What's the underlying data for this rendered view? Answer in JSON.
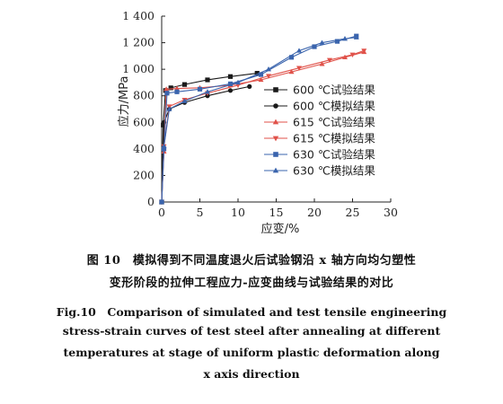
{
  "chart_data": {
    "type": "line",
    "xlabel": "应变/%",
    "ylabel": "应力/MPa",
    "xlim": [
      0,
      30
    ],
    "ylim": [
      0,
      1400
    ],
    "xticks": [
      "0",
      "5",
      "10",
      "15",
      "20",
      "25",
      "30"
    ],
    "yticks": [
      "0",
      "200",
      "400",
      "600",
      "800",
      "1 000",
      "1 200",
      "1 400"
    ],
    "grid": false,
    "legend_position": "right",
    "series": [
      {
        "name": "600 ℃试验结果",
        "color": "#1a1a1a",
        "marker": "square",
        "x": [
          0,
          0.2,
          0.5,
          1.2,
          3,
          6,
          9,
          12.5
        ],
        "y": [
          0,
          580,
          840,
          860,
          885,
          920,
          945,
          970
        ]
      },
      {
        "name": "600 ℃模拟结果",
        "color": "#1a1a1a",
        "marker": "circle",
        "x": [
          0,
          0.3,
          1,
          3,
          6,
          9,
          11.5
        ],
        "y": [
          0,
          600,
          700,
          750,
          800,
          840,
          870
        ]
      },
      {
        "name": "615 ℃试验结果",
        "color": "#e0524a",
        "marker": "triangle-up",
        "x": [
          0,
          0.3,
          0.6,
          2,
          5,
          9,
          13,
          17,
          21,
          24,
          26.5
        ],
        "y": [
          0,
          380,
          850,
          855,
          860,
          880,
          920,
          980,
          1040,
          1090,
          1130
        ]
      },
      {
        "name": "615 ℃模拟结果",
        "color": "#e0524a",
        "marker": "triangle-down",
        "x": [
          0,
          0.3,
          1,
          3,
          6,
          10,
          14,
          18,
          22,
          25,
          26.5
        ],
        "y": [
          0,
          420,
          720,
          770,
          820,
          880,
          950,
          1010,
          1070,
          1110,
          1140
        ]
      },
      {
        "name": "630 ℃试验结果",
        "color": "#3a64ad",
        "marker": "square",
        "x": [
          0,
          0.3,
          0.7,
          2,
          5,
          9,
          13,
          17,
          20,
          23,
          25.5
        ],
        "y": [
          0,
          400,
          820,
          830,
          850,
          890,
          960,
          1090,
          1170,
          1210,
          1250
        ]
      },
      {
        "name": "630 ℃模拟结果",
        "color": "#3a64ad",
        "marker": "triangle-up",
        "x": [
          0,
          0.3,
          1,
          3,
          6,
          10,
          14,
          18,
          21,
          24,
          25.5
        ],
        "y": [
          0,
          420,
          700,
          760,
          830,
          900,
          1000,
          1140,
          1200,
          1230,
          1240
        ]
      }
    ]
  },
  "caption": {
    "zh_line1": "图 10　模拟得到不同温度退火后试验钢沿 x 轴方向均匀塑性",
    "zh_line2": "变形阶段的拉伸工程应力-应变曲线与试验结果的对比",
    "en_line1": "Fig.10　Comparison of simulated and test tensile engineering",
    "en_line2": "stress-strain curves of test steel after annealing at different",
    "en_line3": "temperatures at stage of uniform plastic deformation along",
    "en_line4": "x axis direction"
  }
}
